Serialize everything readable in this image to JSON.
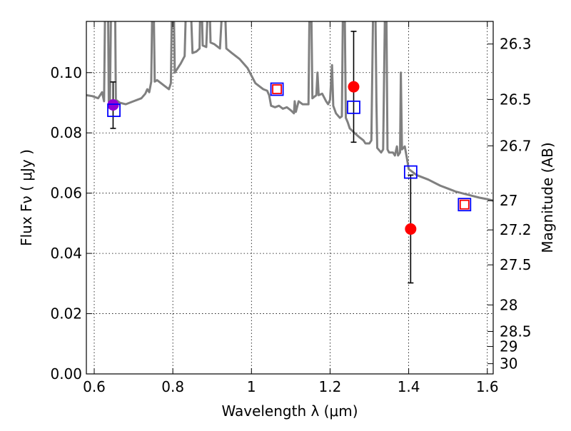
{
  "chart_data": {
    "type": "scatter",
    "xlabel": "Wavelength  λ (μm)",
    "ylabel": "Flux  Fν ( μJy )",
    "y2label": "Magnitude (AB)",
    "xlim": [
      0.58,
      1.615
    ],
    "ylim": [
      0.0,
      0.117
    ],
    "grid": true,
    "x_ticks": [
      {
        "value": 0.6,
        "label": "0.6"
      },
      {
        "value": 0.8,
        "label": "0.8"
      },
      {
        "value": 1.0,
        "label": "1"
      },
      {
        "value": 1.2,
        "label": "1.2"
      },
      {
        "value": 1.4,
        "label": "1.4"
      },
      {
        "value": 1.6,
        "label": "1.6"
      }
    ],
    "y_ticks": [
      {
        "value": 0.0,
        "label": "0.00"
      },
      {
        "value": 0.02,
        "label": "0.02"
      },
      {
        "value": 0.04,
        "label": "0.04"
      },
      {
        "value": 0.06,
        "label": "0.06"
      },
      {
        "value": 0.08,
        "label": "0.08"
      },
      {
        "value": 0.1,
        "label": "0.10"
      }
    ],
    "y2_ticks": [
      {
        "flux": 0.1095,
        "label": "26.3"
      },
      {
        "flux": 0.0911,
        "label": "26.5"
      },
      {
        "flux": 0.0757,
        "label": "26.7"
      },
      {
        "flux": 0.0575,
        "label": "27"
      },
      {
        "flux": 0.0478,
        "label": "27.2"
      },
      {
        "flux": 0.0362,
        "label": "27.5"
      },
      {
        "flux": 0.0229,
        "label": "28"
      },
      {
        "flux": 0.0141,
        "label": "28.5"
      },
      {
        "flux": 0.0091,
        "label": "29"
      },
      {
        "flux": 0.0034,
        "label": "30"
      }
    ],
    "sed_model": {
      "color": "#808080",
      "points": [
        [
          0.58,
          0.0925
        ],
        [
          0.595,
          0.0922
        ],
        [
          0.61,
          0.0915
        ],
        [
          0.62,
          0.0935
        ],
        [
          0.625,
          0.0905
        ],
        [
          0.628,
          0.125
        ],
        [
          0.635,
          0.125
        ],
        [
          0.637,
          0.0905
        ],
        [
          0.64,
          0.0895
        ],
        [
          0.643,
          0.125
        ],
        [
          0.653,
          0.125
        ],
        [
          0.655,
          0.091
        ],
        [
          0.665,
          0.09
        ],
        [
          0.68,
          0.0895
        ],
        [
          0.7,
          0.0905
        ],
        [
          0.72,
          0.0915
        ],
        [
          0.73,
          0.093
        ],
        [
          0.735,
          0.0945
        ],
        [
          0.74,
          0.0935
        ],
        [
          0.745,
          0.097
        ],
        [
          0.748,
          0.125
        ],
        [
          0.751,
          0.125
        ],
        [
          0.754,
          0.097
        ],
        [
          0.76,
          0.0975
        ],
        [
          0.77,
          0.0965
        ],
        [
          0.78,
          0.0955
        ],
        [
          0.79,
          0.0945
        ],
        [
          0.795,
          0.0965
        ],
        [
          0.798,
          0.125
        ],
        [
          0.802,
          0.125
        ],
        [
          0.805,
          0.1
        ],
        [
          0.82,
          0.103
        ],
        [
          0.83,
          0.1055
        ],
        [
          0.834,
          0.125
        ],
        [
          0.845,
          0.125
        ],
        [
          0.85,
          0.1065
        ],
        [
          0.86,
          0.107
        ],
        [
          0.868,
          0.108
        ],
        [
          0.87,
          0.125
        ],
        [
          0.873,
          0.125
        ],
        [
          0.876,
          0.109
        ],
        [
          0.885,
          0.1085
        ],
        [
          0.89,
          0.125
        ],
        [
          0.893,
          0.125
        ],
        [
          0.896,
          0.11
        ],
        [
          0.905,
          0.1095
        ],
        [
          0.915,
          0.1085
        ],
        [
          0.92,
          0.108
        ],
        [
          0.927,
          0.125
        ],
        [
          0.932,
          0.125
        ],
        [
          0.936,
          0.108
        ],
        [
          0.95,
          0.1065
        ],
        [
          0.97,
          0.1045
        ],
        [
          0.99,
          0.1015
        ],
        [
          1.0,
          0.099
        ],
        [
          1.01,
          0.0965
        ],
        [
          1.02,
          0.0955
        ],
        [
          1.03,
          0.0945
        ],
        [
          1.04,
          0.094
        ],
        [
          1.045,
          0.0925
        ],
        [
          1.05,
          0.089
        ],
        [
          1.06,
          0.0885
        ],
        [
          1.07,
          0.089
        ],
        [
          1.08,
          0.088
        ],
        [
          1.09,
          0.0885
        ],
        [
          1.1,
          0.0875
        ],
        [
          1.108,
          0.0865
        ],
        [
          1.11,
          0.0905
        ],
        [
          1.113,
          0.087
        ],
        [
          1.12,
          0.0905
        ],
        [
          1.13,
          0.0895
        ],
        [
          1.145,
          0.0895
        ],
        [
          1.148,
          0.125
        ],
        [
          1.152,
          0.125
        ],
        [
          1.155,
          0.0915
        ],
        [
          1.16,
          0.092
        ],
        [
          1.165,
          0.0925
        ],
        [
          1.168,
          0.1
        ],
        [
          1.171,
          0.0925
        ],
        [
          1.18,
          0.093
        ],
        [
          1.19,
          0.0905
        ],
        [
          1.195,
          0.0895
        ],
        [
          1.2,
          0.091
        ],
        [
          1.205,
          0.1025
        ],
        [
          1.208,
          0.089
        ],
        [
          1.215,
          0.0865
        ],
        [
          1.225,
          0.085
        ],
        [
          1.23,
          0.0855
        ],
        [
          1.233,
          0.125
        ],
        [
          1.237,
          0.125
        ],
        [
          1.24,
          0.085
        ],
        [
          1.245,
          0.0835
        ],
        [
          1.25,
          0.0815
        ],
        [
          1.262,
          0.08
        ],
        [
          1.275,
          0.0785
        ],
        [
          1.285,
          0.0775
        ],
        [
          1.29,
          0.0765
        ],
        [
          1.3,
          0.0765
        ],
        [
          1.305,
          0.0775
        ],
        [
          1.31,
          0.125
        ],
        [
          1.315,
          0.125
        ],
        [
          1.318,
          0.09
        ],
        [
          1.32,
          0.075
        ],
        [
          1.33,
          0.0735
        ],
        [
          1.335,
          0.0745
        ],
        [
          1.34,
          0.125
        ],
        [
          1.343,
          0.125
        ],
        [
          1.346,
          0.0745
        ],
        [
          1.35,
          0.0735
        ],
        [
          1.36,
          0.0735
        ],
        [
          1.365,
          0.0725
        ],
        [
          1.37,
          0.0755
        ],
        [
          1.373,
          0.0725
        ],
        [
          1.378,
          0.0735
        ],
        [
          1.38,
          0.1
        ],
        [
          1.383,
          0.0745
        ],
        [
          1.39,
          0.0755
        ],
        [
          1.395,
          0.072
        ],
        [
          1.4,
          0.068
        ],
        [
          1.42,
          0.066
        ],
        [
          1.45,
          0.0645
        ],
        [
          1.48,
          0.0625
        ],
        [
          1.5,
          0.0615
        ],
        [
          1.52,
          0.0605
        ],
        [
          1.55,
          0.0595
        ],
        [
          1.58,
          0.0585
        ],
        [
          1.6,
          0.058
        ],
        [
          1.615,
          0.0575
        ]
      ]
    },
    "series": [
      {
        "marker": "circle",
        "points": [
          {
            "x": 0.648,
            "y": 0.0893,
            "color": "#9400d3",
            "err": [
              0.0815,
              0.0969
            ]
          },
          {
            "x": 1.26,
            "y": 0.0953,
            "color": "#ff0000",
            "err": [
              0.0769,
              0.1137
            ]
          },
          {
            "x": 1.405,
            "y": 0.0481,
            "color": "#ff0000",
            "err": [
              0.0302,
              0.066
            ]
          }
        ]
      },
      {
        "marker": "square-open",
        "color": "#0000ff",
        "points": [
          {
            "x": 0.65,
            "y": 0.0875
          },
          {
            "x": 1.065,
            "y": 0.0945
          },
          {
            "x": 1.26,
            "y": 0.0885
          },
          {
            "x": 1.405,
            "y": 0.067
          },
          {
            "x": 1.542,
            "y": 0.0562
          }
        ]
      },
      {
        "marker": "square-open",
        "color": "#ff0000",
        "points": [
          {
            "x": 1.065,
            "y": 0.0945
          },
          {
            "x": 1.542,
            "y": 0.0562
          }
        ]
      }
    ]
  }
}
